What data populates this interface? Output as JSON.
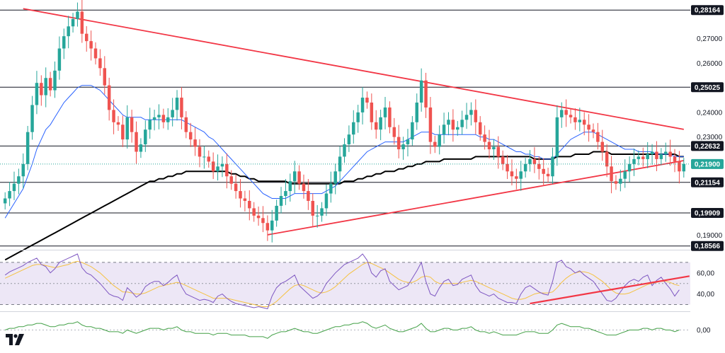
{
  "chart_data": {
    "type": "candlestick",
    "price_panel": {
      "ylim": [
        0.185,
        0.284
      ],
      "axis_ticks": [
        "0,27000",
        "0,26000",
        "0,24000",
        "0,23000",
        "0,19000"
      ],
      "axis_tick_values": [
        0.27,
        0.26,
        0.24,
        0.23,
        0.19
      ],
      "levels": [
        {
          "label": "0,28164",
          "value": 0.28164
        },
        {
          "label": "0,25025",
          "value": 0.25025
        },
        {
          "label": "0,22632",
          "value": 0.22632
        },
        {
          "label": "0,21154",
          "value": 0.21154
        },
        {
          "label": "0,19909",
          "value": 0.19909
        },
        {
          "label": "0,18566",
          "value": 0.18566
        }
      ],
      "current_price": {
        "label": "0,21900",
        "value": 0.219
      },
      "current_price_color": "#26a69a",
      "support_resistance_color": "#131722",
      "trendline_color": "#f23645",
      "ma_fast_color": "#2962ff",
      "ma_slow_color": "#000000",
      "bull_color": "#26a69a",
      "bear_color": "#ef5350",
      "trendlines": [
        {
          "name": "descending-resistance",
          "from": {
            "i": 4,
            "price": 0.2822
          },
          "to": {
            "i": 150,
            "price": 0.2331
          }
        },
        {
          "name": "ascending-support",
          "from": {
            "i": 58,
            "price": 0.1902
          },
          "to": {
            "i": 150,
            "price": 0.2204
          }
        }
      ],
      "closes": [
        0.205,
        0.208,
        0.211,
        0.214,
        0.219,
        0.232,
        0.243,
        0.252,
        0.247,
        0.254,
        0.249,
        0.257,
        0.266,
        0.271,
        0.275,
        0.278,
        0.281,
        0.272,
        0.269,
        0.266,
        0.262,
        0.258,
        0.251,
        0.241,
        0.236,
        0.235,
        0.229,
        0.238,
        0.232,
        0.224,
        0.227,
        0.233,
        0.237,
        0.238,
        0.239,
        0.236,
        0.238,
        0.241,
        0.246,
        0.238,
        0.232,
        0.229,
        0.226,
        0.222,
        0.222,
        0.22,
        0.216,
        0.218,
        0.219,
        0.214,
        0.211,
        0.208,
        0.205,
        0.204,
        0.201,
        0.198,
        0.197,
        0.195,
        0.192,
        0.196,
        0.202,
        0.206,
        0.208,
        0.212,
        0.216,
        0.211,
        0.208,
        0.204,
        0.198,
        0.198,
        0.201,
        0.207,
        0.211,
        0.216,
        0.222,
        0.227,
        0.231,
        0.236,
        0.24,
        0.246,
        0.244,
        0.236,
        0.233,
        0.238,
        0.242,
        0.234,
        0.23,
        0.225,
        0.227,
        0.229,
        0.236,
        0.244,
        0.253,
        0.242,
        0.228,
        0.226,
        0.231,
        0.235,
        0.237,
        0.233,
        0.234,
        0.237,
        0.239,
        0.241,
        0.236,
        0.231,
        0.228,
        0.225,
        0.226,
        0.222,
        0.219,
        0.216,
        0.214,
        0.213,
        0.216,
        0.219,
        0.221,
        0.219,
        0.217,
        0.215,
        0.214,
        0.222,
        0.238,
        0.241,
        0.239,
        0.238,
        0.236,
        0.237,
        0.235,
        0.233,
        0.232,
        0.228,
        0.224,
        0.218,
        0.212,
        0.211,
        0.213,
        0.216,
        0.219,
        0.221,
        0.222,
        0.221,
        0.223,
        0.224,
        0.221,
        0.223,
        0.224,
        0.222,
        0.22,
        0.216,
        0.219
      ],
      "ma_fast": [
        0.197,
        0.2,
        0.203,
        0.206,
        0.209,
        0.214,
        0.219,
        0.225,
        0.229,
        0.233,
        0.235,
        0.238,
        0.241,
        0.244,
        0.246,
        0.248,
        0.25,
        0.251,
        0.251,
        0.251,
        0.25,
        0.249,
        0.247,
        0.245,
        0.243,
        0.241,
        0.239,
        0.238,
        0.238,
        0.238,
        0.238,
        0.237,
        0.237,
        0.237,
        0.237,
        0.237,
        0.237,
        0.237,
        0.237,
        0.237,
        0.236,
        0.235,
        0.234,
        0.233,
        0.232,
        0.23,
        0.229,
        0.227,
        0.225,
        0.223,
        0.221,
        0.219,
        0.217,
        0.215,
        0.213,
        0.211,
        0.209,
        0.207,
        0.206,
        0.205,
        0.205,
        0.205,
        0.205,
        0.206,
        0.207,
        0.207,
        0.207,
        0.207,
        0.207,
        0.207,
        0.207,
        0.208,
        0.209,
        0.21,
        0.212,
        0.214,
        0.216,
        0.218,
        0.22,
        0.222,
        0.224,
        0.225,
        0.226,
        0.227,
        0.228,
        0.228,
        0.228,
        0.228,
        0.228,
        0.229,
        0.23,
        0.231,
        0.232,
        0.232,
        0.232,
        0.231,
        0.231,
        0.231,
        0.231,
        0.231,
        0.231,
        0.231,
        0.231,
        0.231,
        0.231,
        0.23,
        0.23,
        0.229,
        0.229,
        0.228,
        0.227,
        0.226,
        0.225,
        0.224,
        0.224,
        0.223,
        0.223,
        0.222,
        0.222,
        0.221,
        0.221,
        0.221,
        0.223,
        0.225,
        0.227,
        0.229,
        0.23,
        0.231,
        0.232,
        0.232,
        0.232,
        0.231,
        0.23,
        0.229,
        0.228,
        0.227,
        0.226,
        0.225,
        0.225,
        0.225,
        0.224,
        0.224,
        0.224,
        0.224,
        0.223,
        0.223,
        0.223,
        0.223,
        0.222,
        0.222,
        0.222
      ],
      "ma_slow": [
        0.18,
        0.181,
        0.182,
        0.183,
        0.184,
        0.185,
        0.186,
        0.187,
        0.188,
        0.189,
        0.19,
        0.191,
        0.192,
        0.193,
        0.194,
        0.195,
        0.196,
        0.197,
        0.198,
        0.199,
        0.2,
        0.201,
        0.202,
        0.203,
        0.204,
        0.205,
        0.206,
        0.207,
        0.208,
        0.209,
        0.21,
        0.211,
        0.212,
        0.212,
        0.213,
        0.213,
        0.214,
        0.214,
        0.215,
        0.215,
        0.216,
        0.216,
        0.216,
        0.216,
        0.216,
        0.216,
        0.216,
        0.216,
        0.216,
        0.216,
        0.215,
        0.215,
        0.214,
        0.214,
        0.213,
        0.213,
        0.212,
        0.212,
        0.212,
        0.212,
        0.212,
        0.212,
        0.212,
        0.211,
        0.211,
        0.211,
        0.211,
        0.211,
        0.211,
        0.211,
        0.211,
        0.211,
        0.211,
        0.211,
        0.211,
        0.212,
        0.212,
        0.212,
        0.213,
        0.213,
        0.214,
        0.214,
        0.215,
        0.215,
        0.216,
        0.216,
        0.216,
        0.217,
        0.217,
        0.218,
        0.218,
        0.219,
        0.219,
        0.22,
        0.22,
        0.22,
        0.22,
        0.221,
        0.221,
        0.221,
        0.221,
        0.221,
        0.221,
        0.221,
        0.222,
        0.222,
        0.222,
        0.222,
        0.222,
        0.222,
        0.222,
        0.222,
        0.222,
        0.222,
        0.222,
        0.222,
        0.222,
        0.221,
        0.221,
        0.221,
        0.221,
        0.221,
        0.222,
        0.222,
        0.222,
        0.222,
        0.223,
        0.223,
        0.223,
        0.223,
        0.224,
        0.224,
        0.224,
        0.224,
        0.223,
        0.223,
        0.223,
        0.223,
        0.223,
        0.223,
        0.223,
        0.223,
        0.223,
        0.223,
        0.223,
        0.223,
        0.223,
        0.223,
        0.223,
        0.222,
        0.222
      ]
    },
    "rsi_panel": {
      "ylim": [
        25,
        80
      ],
      "axis_ticks": [
        "60,00",
        "40,00"
      ],
      "axis_tick_values": [
        60,
        40
      ],
      "band": [
        30,
        70
      ],
      "rsi_color": "#7e57c2",
      "signal_color": "#f5c242",
      "band_fill": "#ede7f6",
      "trendline": {
        "from": {
          "i": 116,
          "value": 31
        },
        "to": {
          "i": 150,
          "value": 57
        }
      },
      "rsi": [
        58,
        61,
        63,
        65,
        67,
        70,
        72,
        74,
        68,
        66,
        60,
        64,
        70,
        72,
        74,
        76,
        78,
        65,
        60,
        58,
        54,
        50,
        45,
        40,
        38,
        37,
        34,
        46,
        42,
        37,
        40,
        47,
        50,
        52,
        52,
        48,
        51,
        55,
        58,
        47,
        40,
        38,
        36,
        34,
        35,
        34,
        32,
        38,
        40,
        36,
        33,
        31,
        30,
        29,
        28,
        27,
        28,
        27,
        26,
        38,
        46,
        50,
        52,
        55,
        58,
        48,
        44,
        40,
        36,
        38,
        42,
        50,
        55,
        60,
        64,
        68,
        70,
        72,
        74,
        78,
        72,
        60,
        56,
        62,
        64,
        52,
        48,
        44,
        46,
        48,
        55,
        62,
        70,
        52,
        40,
        38,
        46,
        52,
        54,
        48,
        49,
        54,
        56,
        58,
        48,
        42,
        40,
        38,
        40,
        36,
        34,
        32,
        32,
        31,
        40,
        46,
        48,
        45,
        42,
        40,
        39,
        52,
        70,
        72,
        66,
        64,
        60,
        62,
        58,
        55,
        52,
        46,
        40,
        34,
        33,
        36,
        42,
        48,
        52,
        54,
        52,
        56,
        58,
        48,
        53,
        56,
        50,
        45,
        38,
        44
      ],
      "signal": [
        55,
        57,
        59,
        61,
        63,
        65,
        67,
        68,
        68,
        67,
        66,
        65,
        66,
        67,
        68,
        70,
        71,
        70,
        68,
        66,
        63,
        60,
        56,
        52,
        48,
        45,
        42,
        42,
        41,
        40,
        40,
        41,
        43,
        45,
        47,
        48,
        49,
        50,
        51,
        50,
        48,
        46,
        44,
        42,
        40,
        38,
        36,
        36,
        36,
        36,
        35,
        34,
        33,
        32,
        31,
        30,
        29,
        28,
        28,
        30,
        33,
        37,
        41,
        45,
        48,
        49,
        48,
        46,
        44,
        42,
        41,
        42,
        44,
        47,
        51,
        55,
        59,
        62,
        65,
        68,
        70,
        69,
        67,
        65,
        63,
        60,
        57,
        54,
        52,
        51,
        51,
        53,
        56,
        57,
        56,
        52,
        50,
        50,
        50,
        50,
        50,
        51,
        52,
        53,
        52,
        50,
        48,
        46,
        44,
        42,
        40,
        38,
        36,
        35,
        35,
        36,
        38,
        40,
        41,
        41,
        41,
        42,
        46,
        51,
        55,
        58,
        60,
        61,
        61,
        60,
        58,
        55,
        52,
        48,
        44,
        41,
        40,
        40,
        41,
        43,
        45,
        47,
        49,
        50,
        51,
        52,
        52,
        51,
        49,
        48
      ]
    },
    "oscillator_panel": {
      "axis_ticks": [
        "0,00"
      ],
      "axis_tick_values": [
        0
      ],
      "ylim": [
        -10,
        10
      ],
      "line_color": "#43a047",
      "values": [
        0,
        1,
        1,
        2,
        2,
        3,
        3,
        4,
        4,
        3,
        2,
        2,
        3,
        3,
        4,
        4,
        5,
        3,
        2,
        2,
        1,
        1,
        0,
        -1,
        -1,
        -1,
        -2,
        0,
        -1,
        -2,
        -1,
        0,
        1,
        1,
        1,
        0,
        1,
        1,
        2,
        0,
        -1,
        -1,
        -2,
        -2,
        -2,
        -2,
        -3,
        -2,
        -2,
        -2,
        -3,
        -3,
        -3,
        -3,
        -4,
        -4,
        -4,
        -4,
        -5,
        -3,
        -2,
        -1,
        -1,
        0,
        1,
        0,
        -1,
        -1,
        -2,
        -2,
        -1,
        0,
        1,
        2,
        2,
        3,
        3,
        4,
        4,
        5,
        4,
        2,
        1,
        2,
        3,
        1,
        0,
        -1,
        -1,
        0,
        1,
        2,
        4,
        1,
        -1,
        -1,
        0,
        1,
        1,
        0,
        0,
        1,
        1,
        2,
        0,
        -1,
        -1,
        -2,
        -1,
        -2,
        -3,
        -3,
        -3,
        -3,
        -2,
        -1,
        -1,
        -1,
        -2,
        -2,
        -2,
        0,
        3,
        4,
        3,
        2,
        2,
        2,
        1,
        1,
        0,
        -1,
        -2,
        -3,
        -3,
        -3,
        -2,
        -1,
        0,
        0,
        0,
        1,
        1,
        0,
        1,
        1,
        0,
        0,
        -1,
        0
      ]
    }
  }
}
